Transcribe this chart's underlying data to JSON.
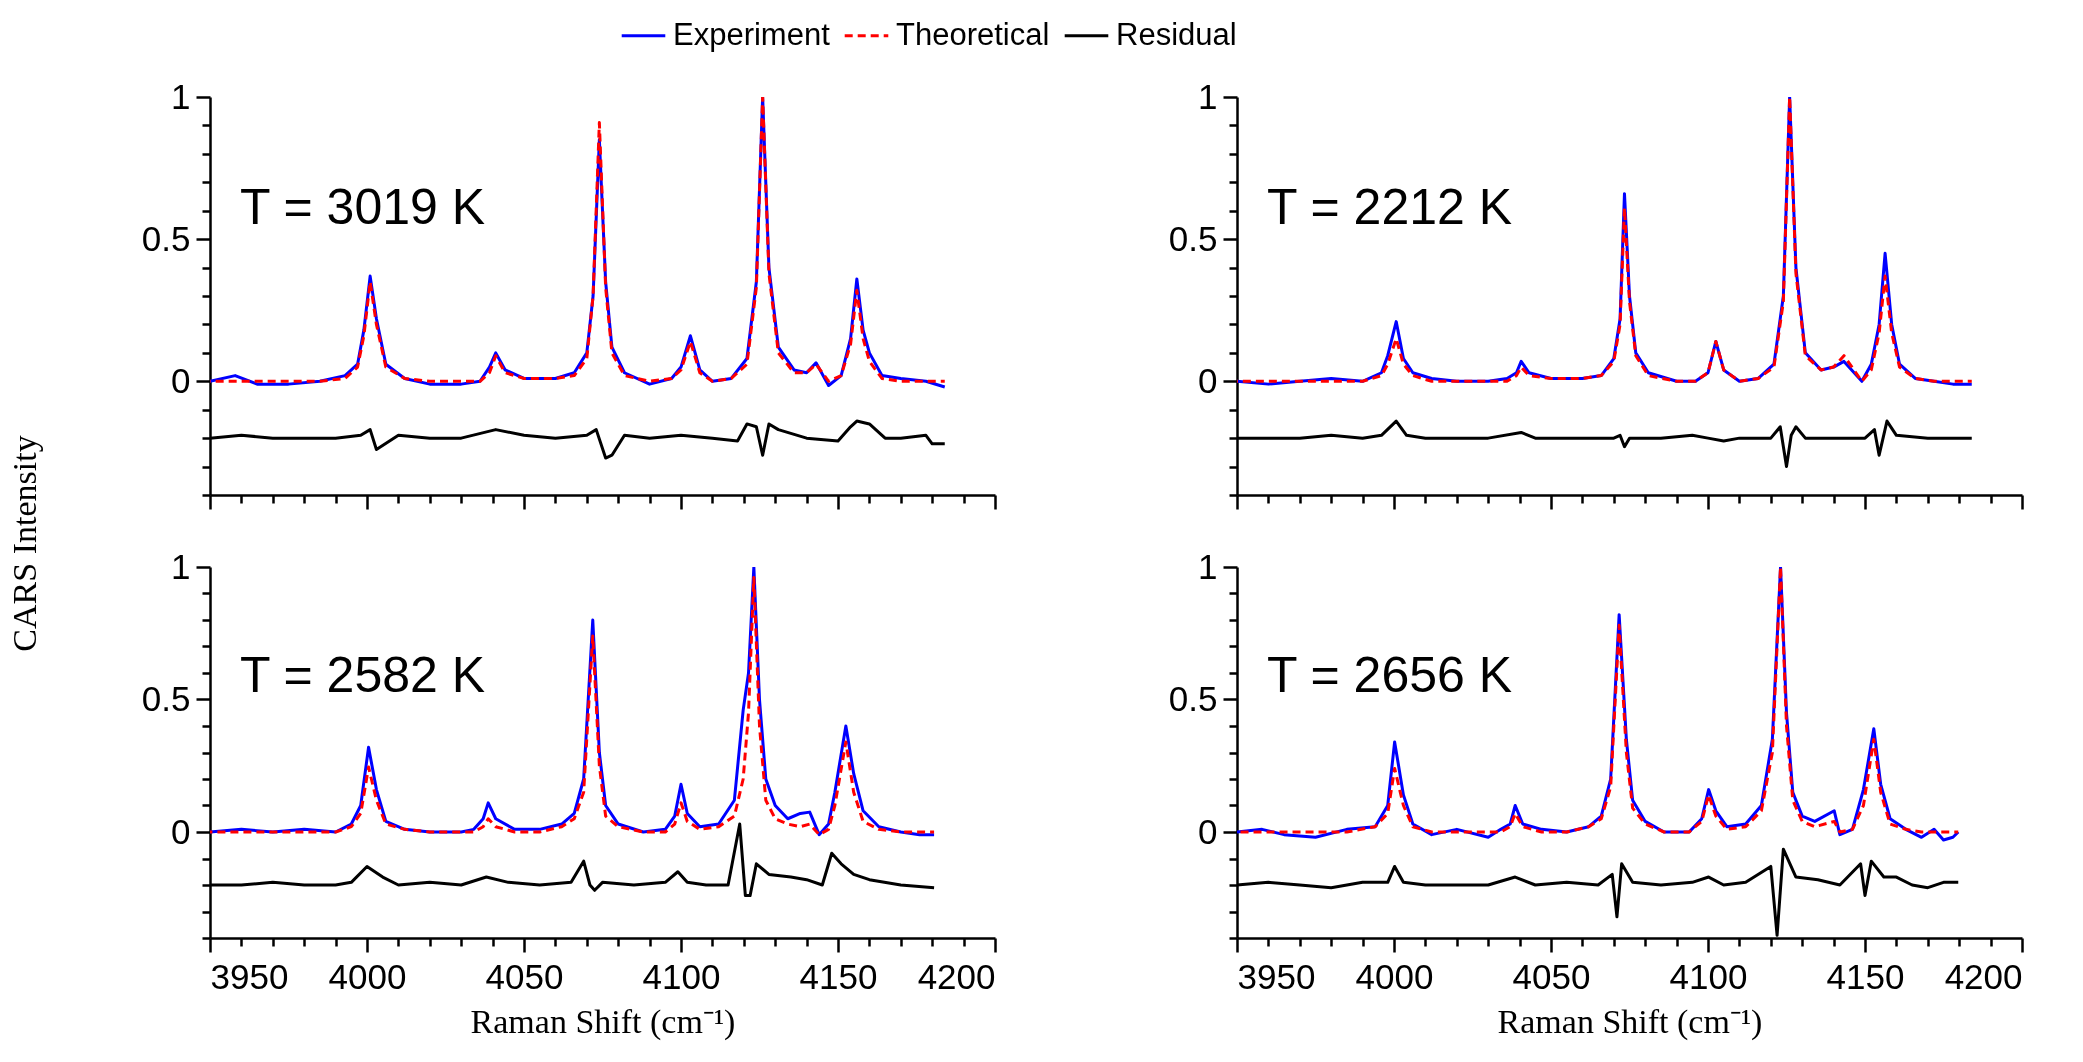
{
  "chart_data": [
    {
      "type": "line",
      "ylabel": "CARS Intensity",
      "annotations": [
        "T = 3019 K"
      ],
      "legend": "top",
      "tick_labels": "y",
      "xlim": [
        3950,
        4200
      ],
      "ylim": [
        -0.4,
        1
      ],
      "xticks": [
        3950,
        {
          "value": 3960,
          "label": null
        },
        {
          "value": 3970,
          "label": null
        },
        {
          "value": 3980,
          "label": null
        },
        {
          "value": 3990,
          "label": null
        },
        4000,
        {
          "value": 4010,
          "label": null
        },
        {
          "value": 4020,
          "label": null
        },
        {
          "value": 4030,
          "label": null
        },
        {
          "value": 4040,
          "label": null
        },
        4050,
        {
          "value": 4060,
          "label": null
        },
        {
          "value": 4070,
          "label": null
        },
        {
          "value": 4080,
          "label": null
        },
        {
          "value": 4090,
          "label": null
        },
        4100,
        {
          "value": 4110,
          "label": null
        },
        {
          "value": 4120,
          "label": null
        },
        {
          "value": 4130,
          "label": null
        },
        {
          "value": 4140,
          "label": null
        },
        4150,
        {
          "value": 4160,
          "label": null
        },
        {
          "value": 4170,
          "label": null
        },
        {
          "value": 4180,
          "label": null
        },
        {
          "value": 4190,
          "label": null
        },
        4200
      ],
      "yticks": [
        {
          "value": -0.4,
          "label": null
        },
        {
          "value": -0.3,
          "label": null
        },
        {
          "value": -0.2,
          "label": null
        },
        {
          "value": -0.1,
          "label": null
        },
        0,
        {
          "value": 0.1,
          "label": null
        },
        {
          "value": 0.2,
          "label": null
        },
        {
          "value": 0.3,
          "label": null
        },
        {
          "value": 0.4,
          "label": null
        },
        0.5,
        {
          "value": 0.6,
          "label": null
        },
        {
          "value": 0.7,
          "label": null
        },
        {
          "value": 0.8,
          "label": null
        },
        {
          "value": 0.9,
          "label": null
        },
        1
      ],
      "series": [
        {
          "name": "Experiment",
          "color": "#0000ff",
          "line_style": "solid",
          "x": [
            3950,
            3958,
            3965,
            3975,
            3985,
            3993,
            3997,
            3999,
            4001,
            4003,
            4006,
            4012,
            4020,
            4030,
            4036,
            4039,
            4041,
            4044,
            4050,
            4060,
            4066,
            4070,
            4072,
            4074,
            4076,
            4078,
            4082,
            4090,
            4097,
            4100,
            4103,
            4106,
            4110,
            4116,
            4121,
            4124,
            4126,
            4128,
            4131,
            4136,
            4140,
            4143,
            4147,
            4151,
            4154,
            4156,
            4158,
            4160,
            4164,
            4170,
            4178,
            4184
          ],
          "values": [
            0.0,
            0.02,
            -0.01,
            -0.01,
            0.0,
            0.02,
            0.06,
            0.18,
            0.37,
            0.22,
            0.06,
            0.01,
            -0.01,
            -0.01,
            0.0,
            0.05,
            0.1,
            0.04,
            0.01,
            0.01,
            0.03,
            0.1,
            0.3,
            0.85,
            0.35,
            0.12,
            0.03,
            -0.01,
            0.01,
            0.05,
            0.16,
            0.04,
            0.0,
            0.01,
            0.08,
            0.35,
            1.0,
            0.4,
            0.12,
            0.04,
            0.03,
            0.065,
            -0.015,
            0.02,
            0.15,
            0.36,
            0.18,
            0.1,
            0.02,
            0.01,
            0.0,
            -0.02
          ]
        },
        {
          "name": "Theoretical",
          "color": "#ff0000",
          "line_style": "dashed",
          "x": [
            3950,
            3958,
            3965,
            3975,
            3985,
            3993,
            3997,
            3999,
            4001,
            4003,
            4006,
            4012,
            4020,
            4030,
            4036,
            4039,
            4041,
            4044,
            4050,
            4060,
            4066,
            4070,
            4072,
            4074,
            4076,
            4078,
            4082,
            4090,
            4097,
            4100,
            4103,
            4106,
            4110,
            4116,
            4121,
            4124,
            4126,
            4128,
            4131,
            4136,
            4140,
            4143,
            4147,
            4151,
            4154,
            4156,
            4158,
            4160,
            4164,
            4170,
            4178,
            4184
          ],
          "values": [
            0,
            0,
            0,
            0,
            0,
            0.01,
            0.05,
            0.16,
            0.35,
            0.2,
            0.05,
            0.01,
            0,
            0,
            0,
            0.03,
            0.09,
            0.03,
            0.01,
            0.01,
            0.02,
            0.08,
            0.3,
            0.91,
            0.33,
            0.1,
            0.02,
            0,
            0.01,
            0.04,
            0.14,
            0.03,
            0,
            0.01,
            0.06,
            0.33,
            1.0,
            0.38,
            0.1,
            0.03,
            0.03,
            0.06,
            0,
            0.02,
            0.13,
            0.32,
            0.15,
            0.07,
            0.01,
            0,
            0,
            0
          ]
        },
        {
          "name": "Residual",
          "color": "#000000",
          "line_style": "solid",
          "x": [
            3950,
            3960,
            3970,
            3980,
            3990,
            3998,
            4001,
            4003,
            4010,
            4020,
            4030,
            4041,
            4050,
            4060,
            4070,
            4073,
            4076,
            4078,
            4082,
            4090,
            4100,
            4110,
            4118,
            4121,
            4124,
            4126,
            4128,
            4131,
            4140,
            4150,
            4154,
            4156,
            4160,
            4165,
            4170,
            4178,
            4180,
            4184
          ],
          "values": [
            -0.2,
            -0.19,
            -0.2,
            -0.2,
            -0.2,
            -0.19,
            -0.17,
            -0.24,
            -0.19,
            -0.2,
            -0.2,
            -0.17,
            -0.19,
            -0.2,
            -0.19,
            -0.17,
            -0.27,
            -0.26,
            -0.19,
            -0.2,
            -0.19,
            -0.2,
            -0.21,
            -0.15,
            -0.16,
            -0.26,
            -0.15,
            -0.17,
            -0.2,
            -0.21,
            -0.16,
            -0.14,
            -0.15,
            -0.2,
            -0.2,
            -0.19,
            -0.22,
            -0.22
          ]
        }
      ]
    },
    {
      "type": "line",
      "annotations": [
        "T = 2212 K"
      ],
      "tick_labels": "y",
      "xlim": [
        3950,
        4200
      ],
      "ylim": [
        -0.4,
        1
      ],
      "xticks": [
        3950,
        {
          "value": 3960,
          "label": null
        },
        {
          "value": 3970,
          "label": null
        },
        {
          "value": 3980,
          "label": null
        },
        {
          "value": 3990,
          "label": null
        },
        4000,
        {
          "value": 4010,
          "label": null
        },
        {
          "value": 4020,
          "label": null
        },
        {
          "value": 4030,
          "label": null
        },
        {
          "value": 4040,
          "label": null
        },
        4050,
        {
          "value": 4060,
          "label": null
        },
        {
          "value": 4070,
          "label": null
        },
        {
          "value": 4080,
          "label": null
        },
        {
          "value": 4090,
          "label": null
        },
        4100,
        {
          "value": 4110,
          "label": null
        },
        {
          "value": 4120,
          "label": null
        },
        {
          "value": 4130,
          "label": null
        },
        {
          "value": 4140,
          "label": null
        },
        4150,
        {
          "value": 4160,
          "label": null
        },
        {
          "value": 4170,
          "label": null
        },
        {
          "value": 4180,
          "label": null
        },
        {
          "value": 4190,
          "label": null
        },
        4200
      ],
      "yticks": [
        {
          "value": -0.4,
          "label": null
        },
        {
          "value": -0.3,
          "label": null
        },
        {
          "value": -0.2,
          "label": null
        },
        {
          "value": -0.1,
          "label": null
        },
        0,
        {
          "value": 0.1,
          "label": null
        },
        {
          "value": 0.2,
          "label": null
        },
        {
          "value": 0.3,
          "label": null
        },
        {
          "value": 0.4,
          "label": null
        },
        0.5,
        {
          "value": 0.6,
          "label": null
        },
        {
          "value": 0.7,
          "label": null
        },
        {
          "value": 0.8,
          "label": null
        },
        {
          "value": 0.9,
          "label": null
        },
        1
      ],
      "series": [
        {
          "color": "#0000ff",
          "line_style": "solid",
          "x": [
            3950,
            3960,
            3970,
            3980,
            3990,
            3996,
            3998,
            4000.7,
            4003,
            4006,
            4012,
            4020,
            4030,
            4036,
            4039,
            4040.5,
            4043,
            4050,
            4060,
            4066,
            4070,
            4072,
            4073.4,
            4075,
            4077,
            4081,
            4090,
            4096,
            4100,
            4102.5,
            4105,
            4110,
            4116,
            4121,
            4124,
            4126,
            4128,
            4131,
            4136,
            4140,
            4143.3,
            4149,
            4152,
            4154.5,
            4156.4,
            4158.5,
            4161,
            4166,
            4172,
            4178,
            4184
          ],
          "values": [
            0,
            -0.01,
            0,
            0.01,
            0,
            0.03,
            0.09,
            0.21,
            0.08,
            0.03,
            0.01,
            0,
            0,
            0.01,
            0.03,
            0.07,
            0.03,
            0.01,
            0.01,
            0.02,
            0.08,
            0.22,
            0.66,
            0.3,
            0.1,
            0.03,
            0,
            0,
            0.03,
            0.14,
            0.04,
            0,
            0.01,
            0.06,
            0.3,
            1.0,
            0.4,
            0.1,
            0.04,
            0.05,
            0.07,
            0,
            0.06,
            0.2,
            0.45,
            0.2,
            0.06,
            0.01,
            0,
            -0.01,
            -0.01
          ]
        },
        {
          "color": "#ff0000",
          "line_style": "dashed",
          "x": [
            3950,
            3960,
            3970,
            3980,
            3990,
            3996,
            3998,
            4000.7,
            4003,
            4006,
            4012,
            4020,
            4030,
            4036,
            4039,
            4040.5,
            4043,
            4050,
            4060,
            4066,
            4070,
            4072,
            4073.4,
            4075,
            4077,
            4081,
            4090,
            4096,
            4100,
            4102.5,
            4105,
            4110,
            4116,
            4121,
            4124,
            4126,
            4128,
            4131,
            4136,
            4140,
            4143.3,
            4149,
            4152,
            4154.5,
            4156.4,
            4158.5,
            4161,
            4166,
            4172,
            4178,
            4184
          ],
          "values": [
            0,
            0,
            0,
            0,
            0,
            0.02,
            0.06,
            0.15,
            0.06,
            0.02,
            0,
            0,
            0,
            0,
            0.02,
            0.05,
            0.02,
            0.01,
            0.01,
            0.02,
            0.07,
            0.2,
            0.61,
            0.28,
            0.09,
            0.02,
            0,
            0,
            0.03,
            0.14,
            0.04,
            0,
            0.01,
            0.05,
            0.28,
            1.0,
            0.38,
            0.09,
            0.04,
            0.05,
            0.09,
            0,
            0.04,
            0.17,
            0.37,
            0.17,
            0.05,
            0.01,
            0,
            0,
            0
          ]
        },
        {
          "color": "#000000",
          "line_style": "solid",
          "x": [
            3950,
            3960,
            3970,
            3980,
            3990,
            3996,
            4000.7,
            4004,
            4010,
            4020,
            4030,
            4040.5,
            4045,
            4060,
            4070,
            4072,
            4073.4,
            4075,
            4085,
            4095,
            4100,
            4105,
            4110,
            4120,
            4123,
            4125,
            4126.5,
            4128,
            4131,
            4140,
            4150,
            4153,
            4154.5,
            4157,
            4160,
            4170,
            4180,
            4184
          ],
          "values": [
            -0.2,
            -0.2,
            -0.2,
            -0.19,
            -0.2,
            -0.19,
            -0.14,
            -0.19,
            -0.2,
            -0.2,
            -0.2,
            -0.18,
            -0.2,
            -0.2,
            -0.2,
            -0.19,
            -0.23,
            -0.2,
            -0.2,
            -0.19,
            -0.2,
            -0.21,
            -0.2,
            -0.2,
            -0.16,
            -0.3,
            -0.19,
            -0.16,
            -0.2,
            -0.2,
            -0.2,
            -0.17,
            -0.26,
            -0.14,
            -0.19,
            -0.2,
            -0.2,
            -0.2
          ]
        }
      ]
    },
    {
      "type": "line",
      "xlabel": "Raman Shift (cm⁻¹)",
      "annotations": [
        "T = 2582 K"
      ],
      "xlim": [
        3950,
        4200
      ],
      "ylim": [
        -0.4,
        1
      ],
      "xticks": [
        3950,
        {
          "value": 3960,
          "label": null
        },
        {
          "value": 3970,
          "label": null
        },
        {
          "value": 3980,
          "label": null
        },
        {
          "value": 3990,
          "label": null
        },
        4000,
        {
          "value": 4010,
          "label": null
        },
        {
          "value": 4020,
          "label": null
        },
        {
          "value": 4030,
          "label": null
        },
        {
          "value": 4040,
          "label": null
        },
        4050,
        {
          "value": 4060,
          "label": null
        },
        {
          "value": 4070,
          "label": null
        },
        {
          "value": 4080,
          "label": null
        },
        {
          "value": 4090,
          "label": null
        },
        4100,
        {
          "value": 4110,
          "label": null
        },
        {
          "value": 4120,
          "label": null
        },
        {
          "value": 4130,
          "label": null
        },
        {
          "value": 4140,
          "label": null
        },
        4150,
        {
          "value": 4160,
          "label": null
        },
        {
          "value": 4170,
          "label": null
        },
        {
          "value": 4180,
          "label": null
        },
        {
          "value": 4190,
          "label": null
        },
        4200
      ],
      "yticks": [
        {
          "value": -0.4,
          "label": null
        },
        {
          "value": -0.3,
          "label": null
        },
        {
          "value": -0.2,
          "label": null
        },
        {
          "value": -0.1,
          "label": null
        },
        0,
        {
          "value": 0.1,
          "label": null
        },
        {
          "value": 0.2,
          "label": null
        },
        {
          "value": 0.3,
          "label": null
        },
        {
          "value": 0.4,
          "label": null
        },
        0.5,
        {
          "value": 0.6,
          "label": null
        },
        {
          "value": 0.7,
          "label": null
        },
        {
          "value": 0.8,
          "label": null
        },
        {
          "value": 0.9,
          "label": null
        },
        1
      ],
      "series": [
        {
          "color": "#0000ff",
          "line_style": "solid",
          "x": [
            3950,
            3960,
            3970,
            3980,
            3990,
            3995,
            3998,
            4000.5,
            4003,
            4006,
            4012,
            4020,
            4030,
            4034,
            4037,
            4038.6,
            4041,
            4047,
            4055,
            4062,
            4066,
            4069,
            4071.9,
            4074,
            4076,
            4080,
            4088,
            4095,
            4098,
            4100,
            4102,
            4106,
            4112,
            4117,
            4119.8,
            4121.5,
            4123.2,
            4125,
            4127,
            4130,
            4134,
            4138,
            4141,
            4144,
            4147,
            4149,
            4152.5,
            4155,
            4158,
            4163,
            4170,
            4176,
            4180.6
          ],
          "values": [
            0,
            0.01,
            0,
            0.01,
            0,
            0.03,
            0.1,
            0.32,
            0.16,
            0.04,
            0.01,
            0,
            0,
            0.01,
            0.05,
            0.11,
            0.05,
            0.01,
            0.01,
            0.03,
            0.07,
            0.2,
            0.8,
            0.3,
            0.1,
            0.03,
            0,
            0.01,
            0.06,
            0.18,
            0.07,
            0.02,
            0.03,
            0.12,
            0.46,
            0.6,
            1.0,
            0.5,
            0.2,
            0.1,
            0.05,
            0.07,
            0.075,
            -0.01,
            0.03,
            0.15,
            0.4,
            0.22,
            0.08,
            0.02,
            0,
            -0.01,
            -0.01
          ]
        },
        {
          "color": "#ff0000",
          "line_style": "dashed",
          "x": [
            3950,
            3960,
            3970,
            3980,
            3990,
            3995,
            3998,
            4000.5,
            4003,
            4006,
            4012,
            4020,
            4030,
            4034,
            4037,
            4038.6,
            4041,
            4047,
            4055,
            4062,
            4066,
            4069,
            4071.9,
            4074,
            4076,
            4080,
            4088,
            4095,
            4098,
            4100,
            4102,
            4106,
            4112,
            4117,
            4119.8,
            4121.5,
            4123.2,
            4125,
            4127,
            4130,
            4134,
            4138,
            4141,
            4144,
            4147,
            4149,
            4152.5,
            4155,
            4158,
            4163,
            4170,
            4176,
            4180.6
          ],
          "values": [
            0,
            0,
            0,
            0,
            0,
            0.02,
            0.07,
            0.245,
            0.12,
            0.03,
            0.01,
            0,
            0,
            0,
            0.02,
            0.05,
            0.02,
            0,
            0,
            0.02,
            0.05,
            0.15,
            0.74,
            0.25,
            0.06,
            0.02,
            0,
            0,
            0.03,
            0.11,
            0.04,
            0.01,
            0.02,
            0.06,
            0.2,
            0.45,
            0.96,
            0.4,
            0.12,
            0.05,
            0.03,
            0.02,
            0.03,
            -0.01,
            0.01,
            0.1,
            0.34,
            0.15,
            0.04,
            0.01,
            0,
            0,
            0
          ]
        },
        {
          "color": "#000000",
          "line_style": "solid",
          "x": [
            3950,
            3960,
            3970,
            3980,
            3990,
            3995,
            4000,
            4005,
            4010,
            4020,
            4030,
            4038,
            4045,
            4055,
            4065,
            4069,
            4071,
            4072.5,
            4075,
            4085,
            4095,
            4099,
            4102,
            4108,
            4115,
            4118.7,
            4120.5,
            4122,
            4124,
            4128,
            4135,
            4140,
            4145,
            4148,
            4151,
            4155,
            4160,
            4170,
            4180.6
          ],
          "values": [
            -0.2,
            -0.2,
            -0.19,
            -0.2,
            -0.2,
            -0.19,
            -0.13,
            -0.17,
            -0.2,
            -0.19,
            -0.2,
            -0.17,
            -0.19,
            -0.2,
            -0.19,
            -0.11,
            -0.2,
            -0.22,
            -0.19,
            -0.2,
            -0.19,
            -0.15,
            -0.19,
            -0.2,
            -0.2,
            0.03,
            -0.24,
            -0.24,
            -0.12,
            -0.16,
            -0.17,
            -0.18,
            -0.2,
            -0.08,
            -0.12,
            -0.16,
            -0.18,
            -0.2,
            -0.21
          ]
        }
      ]
    },
    {
      "type": "line",
      "xlabel": "Raman Shift (cm⁻¹)",
      "annotations": [
        "T = 2656 K"
      ],
      "xlim": [
        3950,
        4200
      ],
      "ylim": [
        -0.4,
        1
      ],
      "xticks": [
        3950,
        {
          "value": 3960,
          "label": null
        },
        {
          "value": 3970,
          "label": null
        },
        {
          "value": 3980,
          "label": null
        },
        {
          "value": 3990,
          "label": null
        },
        4000,
        {
          "value": 4010,
          "label": null
        },
        {
          "value": 4020,
          "label": null
        },
        {
          "value": 4030,
          "label": null
        },
        {
          "value": 4040,
          "label": null
        },
        4050,
        {
          "value": 4060,
          "label": null
        },
        {
          "value": 4070,
          "label": null
        },
        {
          "value": 4080,
          "label": null
        },
        {
          "value": 4090,
          "label": null
        },
        4100,
        {
          "value": 4110,
          "label": null
        },
        {
          "value": 4120,
          "label": null
        },
        {
          "value": 4130,
          "label": null
        },
        {
          "value": 4140,
          "label": null
        },
        4150,
        {
          "value": 4160,
          "label": null
        },
        {
          "value": 4170,
          "label": null
        },
        {
          "value": 4180,
          "label": null
        },
        {
          "value": 4190,
          "label": null
        },
        4200
      ],
      "yticks": [
        {
          "value": -0.4,
          "label": null
        },
        {
          "value": -0.3,
          "label": null
        },
        {
          "value": -0.2,
          "label": null
        },
        {
          "value": -0.1,
          "label": null
        },
        0,
        {
          "value": 0.1,
          "label": null
        },
        {
          "value": 0.2,
          "label": null
        },
        {
          "value": 0.3,
          "label": null
        },
        {
          "value": 0.4,
          "label": null
        },
        0.5,
        {
          "value": 0.6,
          "label": null
        },
        {
          "value": 0.7,
          "label": null
        },
        {
          "value": 0.8,
          "label": null
        },
        {
          "value": 0.9,
          "label": null
        },
        1
      ],
      "series": [
        {
          "color": "#0000ff",
          "line_style": "solid",
          "x": [
            3950,
            3958,
            3965,
            3975,
            3985,
            3994,
            3998,
            4000.2,
            4003,
            4006,
            4012,
            4020,
            4030,
            4034,
            4037,
            4038.6,
            4041,
            4047,
            4055,
            4062,
            4066,
            4069,
            4071.7,
            4074,
            4076,
            4080,
            4086,
            4094,
            4098,
            4100.2,
            4102.5,
            4106,
            4112,
            4117,
            4120.5,
            4123.1,
            4125,
            4127,
            4130,
            4134,
            4140.2,
            4142,
            4146,
            4149.5,
            4152.8,
            4155,
            4158,
            4163,
            4168,
            4172,
            4175,
            4178,
            4179.7
          ],
          "values": [
            0,
            0.01,
            -0.01,
            -0.02,
            0.01,
            0.02,
            0.1,
            0.34,
            0.14,
            0.03,
            -0.01,
            0.01,
            -0.02,
            0.01,
            0.03,
            0.1,
            0.03,
            0.01,
            0,
            0.02,
            0.06,
            0.2,
            0.82,
            0.35,
            0.12,
            0.04,
            0,
            0,
            0.05,
            0.16,
            0.08,
            0.02,
            0.03,
            0.1,
            0.35,
            1.0,
            0.45,
            0.15,
            0.06,
            0.04,
            0.08,
            -0.01,
            0.01,
            0.16,
            0.39,
            0.18,
            0.05,
            0.01,
            -0.02,
            0.01,
            -0.03,
            -0.02,
            0.0
          ]
        },
        {
          "color": "#ff0000",
          "line_style": "dashed",
          "x": [
            3950,
            3958,
            3965,
            3975,
            3985,
            3994,
            3998,
            4000.2,
            4003,
            4006,
            4012,
            4020,
            4030,
            4034,
            4037,
            4038.6,
            4041,
            4047,
            4055,
            4062,
            4066,
            4069,
            4071.7,
            4074,
            4076,
            4080,
            4086,
            4094,
            4098,
            4100.2,
            4102.5,
            4106,
            4112,
            4117,
            4120.5,
            4123.1,
            4125,
            4127,
            4130,
            4134,
            4140.2,
            4142,
            4146,
            4149.5,
            4152.8,
            4155,
            4158,
            4163,
            4168,
            4172,
            4175,
            4178,
            4179.7
          ],
          "values": [
            0,
            0,
            0,
            0,
            0,
            0.02,
            0.07,
            0.24,
            0.1,
            0.02,
            0,
            0,
            0,
            0,
            0.02,
            0.07,
            0.02,
            0,
            0,
            0.02,
            0.05,
            0.17,
            0.78,
            0.3,
            0.09,
            0.03,
            0,
            0,
            0.04,
            0.14,
            0.06,
            0.01,
            0.02,
            0.08,
            0.3,
            1.0,
            0.4,
            0.12,
            0.04,
            0.02,
            0.04,
            0,
            0.01,
            0.1,
            0.35,
            0.15,
            0.03,
            0.01,
            0,
            0,
            0,
            0,
            0
          ]
        },
        {
          "color": "#000000",
          "line_style": "solid",
          "x": [
            3950,
            3960,
            3970,
            3980,
            3990,
            3998,
            4000.2,
            4003,
            4010,
            4020,
            4030,
            4038.6,
            4045,
            4055,
            4065,
            4069.5,
            4071,
            4072.5,
            4076,
            4085,
            4095,
            4100.2,
            4105,
            4112,
            4120,
            4122,
            4124,
            4128,
            4135,
            4142,
            4148.6,
            4150,
            4152,
            4156,
            4160,
            4165,
            4170,
            4175,
            4179.7
          ],
          "values": [
            -0.2,
            -0.19,
            -0.2,
            -0.21,
            -0.19,
            -0.19,
            -0.13,
            -0.19,
            -0.2,
            -0.2,
            -0.2,
            -0.17,
            -0.2,
            -0.19,
            -0.2,
            -0.16,
            -0.32,
            -0.12,
            -0.19,
            -0.2,
            -0.19,
            -0.17,
            -0.2,
            -0.19,
            -0.13,
            -0.39,
            -0.065,
            -0.17,
            -0.18,
            -0.2,
            -0.12,
            -0.24,
            -0.11,
            -0.17,
            -0.17,
            -0.2,
            -0.21,
            -0.19,
            -0.19
          ]
        }
      ]
    }
  ]
}
